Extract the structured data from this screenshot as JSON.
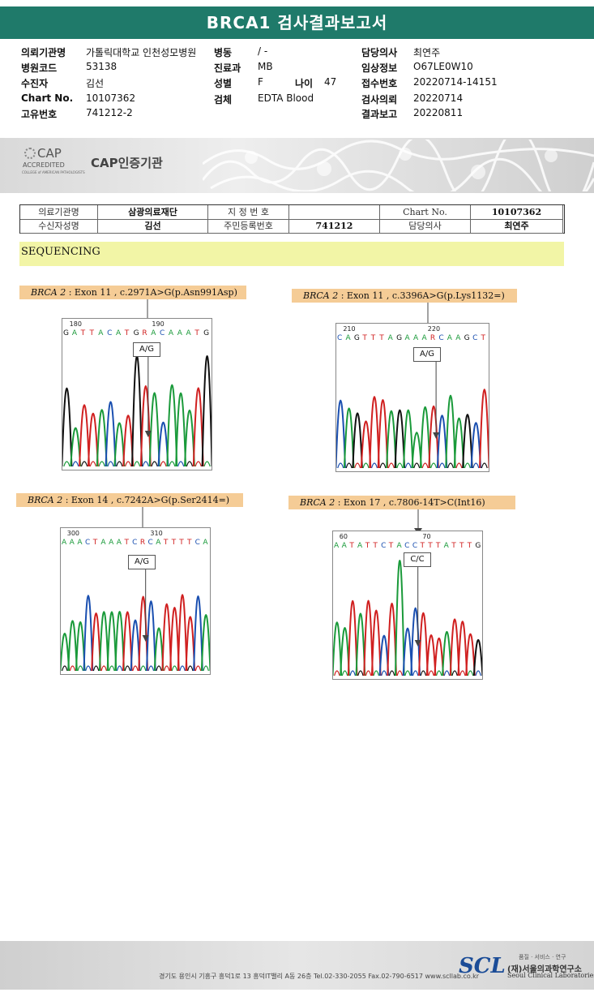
{
  "title": "BRCA1 검사결과보고서",
  "patient": {
    "col1": [
      {
        "label": "의뢰기관명",
        "value": "가톨릭대학교 인천성모병원"
      },
      {
        "label": "병원코드",
        "value": "53138"
      },
      {
        "label": "수진자",
        "value": "김선"
      },
      {
        "label": "Chart No.",
        "value": "10107362"
      },
      {
        "label": "고유번호",
        "value": "741212-2"
      }
    ],
    "col2": [
      {
        "label": "병동",
        "value": "/ -"
      },
      {
        "label": "진료과",
        "value": "MB"
      },
      {
        "label": "성별",
        "value": "F"
      },
      {
        "label": "검체",
        "value": "EDTA Blood"
      }
    ],
    "age_label": "나이",
    "age_value": "47",
    "col3": [
      {
        "label": "담당의사",
        "value": "최연주"
      },
      {
        "label": "임상정보",
        "value": "O67LE0W10"
      },
      {
        "label": "접수번호",
        "value": "20220714-14151"
      },
      {
        "label": "검사의뢰",
        "value": "20220714"
      },
      {
        "label": "결과보고",
        "value": "20220811"
      }
    ]
  },
  "cap": {
    "logo_text": "CAP",
    "accredited": "ACCREDITED",
    "college": "COLLEGE of AMERICAN PATHOLOGISTS",
    "label": "CAP인증기관"
  },
  "subtable": {
    "r1": [
      "의료기관명",
      "삼광의료재단",
      "지 정 번 호",
      "",
      "Chart No.",
      "10107362"
    ],
    "r2": [
      "수신자성명",
      "김선",
      "주민등록번호",
      "741212",
      "담당의사",
      "최연주"
    ]
  },
  "section": "SEQUENCING",
  "variants": [
    {
      "gene": "BRCA 2",
      "desc": " : Exon 11 , c.2971A>G(p.Asn991Asp)",
      "pos1": "180",
      "pos2": "190",
      "seq": "GATTACATGRACAAATG",
      "call": "A/G"
    },
    {
      "gene": "BRCA 2",
      "desc": " : Exon 11 , c.3396A>G(p.Lys1132=)",
      "pos1": "210",
      "pos2": "220",
      "seq": "CAGTTTAGAAARCAAGCT",
      "call": "A/G"
    },
    {
      "gene": "BRCA 2",
      "desc": " : Exon 14 , c.7242A>G(p.Ser2414=)",
      "pos1": "300",
      "pos2": "310",
      "seq": "AAACTAAATCRCATTTTCA",
      "call": "A/G"
    },
    {
      "gene": "BRCA 2",
      "desc": " : Exon 17 , c.7806-14T>C(Int16)",
      "pos1": "60",
      "pos2": "70",
      "seq": "AATATTCTACCTTTATTTG",
      "call": "C/C"
    }
  ],
  "footer": {
    "address": "경기도 용인시 기흥구 흥덕1로 13 흥덕IT밸리 A동 26층  Tel.02-330-2055  Fax.02-790-6517  www.scllab.co.kr",
    "logo": "SCL",
    "motto": "품질 · 서비스 · 연구",
    "name_kr": "(재)서울의과학연구소",
    "name_en": "Seoul Clinical Laboratories"
  },
  "colors": {
    "A": "#1a9a3a",
    "C": "#1a4fb0",
    "G": "#111111",
    "T": "#d02020",
    "R": "#d02020"
  }
}
